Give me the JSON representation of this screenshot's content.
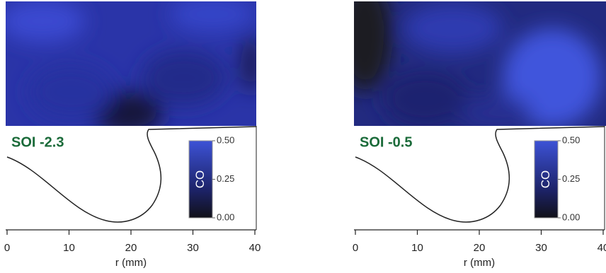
{
  "chart_data": [
    {
      "type": "heatmap",
      "title": "SOI -2.3",
      "xlabel": "r (mm)",
      "xlim": [
        0,
        40
      ],
      "xticks": [
        0,
        10,
        20,
        30,
        40
      ],
      "colorbar_label": "CO",
      "clim": [
        0,
        0.5
      ],
      "cticks": [
        {
          "value": 0,
          "label": "0.00"
        },
        {
          "value": 0.25,
          "label": "0.25"
        },
        {
          "value": 0.5,
          "label": "0.50"
        }
      ]
    },
    {
      "type": "heatmap",
      "title": "SOI -0.5",
      "xlabel": "r (mm)",
      "xlim": [
        0,
        40
      ],
      "xticks": [
        0,
        10,
        20,
        30,
        40
      ],
      "colorbar_label": "CO",
      "clim": [
        0,
        0.5
      ],
      "cticks": [
        {
          "value": 0,
          "label": "0.00"
        },
        {
          "value": 0.25,
          "label": "0.25"
        },
        {
          "value": 0.5,
          "label": "0.50"
        }
      ]
    }
  ]
}
